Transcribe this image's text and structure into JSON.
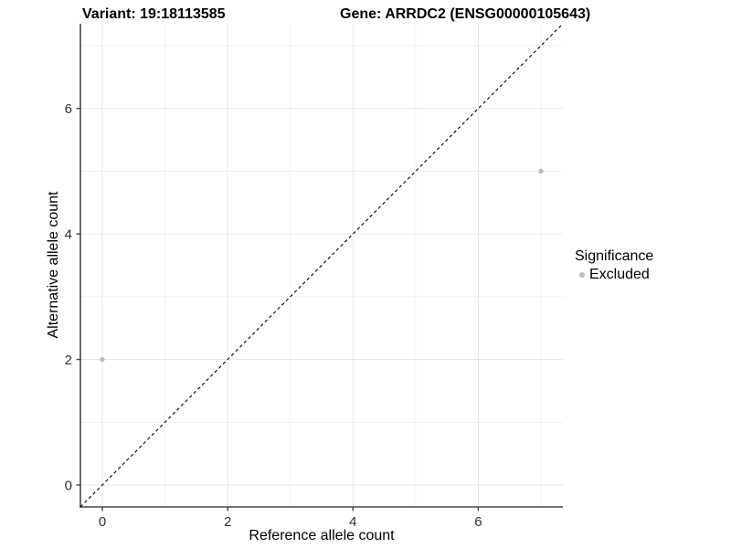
{
  "title": {
    "left": "Variant: 19:18113585",
    "right": "Gene: ARRDC2 (ENSG00000105643)"
  },
  "chart_data": {
    "type": "scatter",
    "title": "Variant: 19:18113585   Gene: ARRDC2 (ENSG00000105643)",
    "xlabel": "Reference allele count",
    "ylabel": "Alternative allele count",
    "xlim": [
      -0.35,
      7.35
    ],
    "ylim": [
      -0.35,
      7.35
    ],
    "x_ticks": [
      0,
      2,
      4,
      6
    ],
    "y_ticks": [
      0,
      2,
      4,
      6
    ],
    "grid": true,
    "grid_major": [
      0,
      2,
      4,
      6
    ],
    "grid_minor": [
      1,
      3,
      5,
      7
    ],
    "legend_position": "right",
    "reference_line": {
      "kind": "identity",
      "x1": -0.35,
      "y1": -0.35,
      "x2": 7.35,
      "y2": 7.35,
      "style": "dashed",
      "color": "#000000"
    },
    "series": [
      {
        "name": "Excluded",
        "color": "#bdbdbd",
        "points": [
          {
            "x": 0,
            "y": 2
          },
          {
            "x": 7,
            "y": 5
          }
        ]
      }
    ]
  },
  "legend": {
    "title": "Significance",
    "items": [
      {
        "label": "Excluded",
        "color": "#bdbdbd",
        "marker": "dot-icon"
      }
    ]
  },
  "colors": {
    "background": "#ffffff",
    "axis_line": "#474747",
    "tick_label": "#303030",
    "grid_major": "#e7e7e7",
    "grid_minor": "#f1f1f1",
    "point": "#bdbdbd",
    "text": "#000000"
  }
}
